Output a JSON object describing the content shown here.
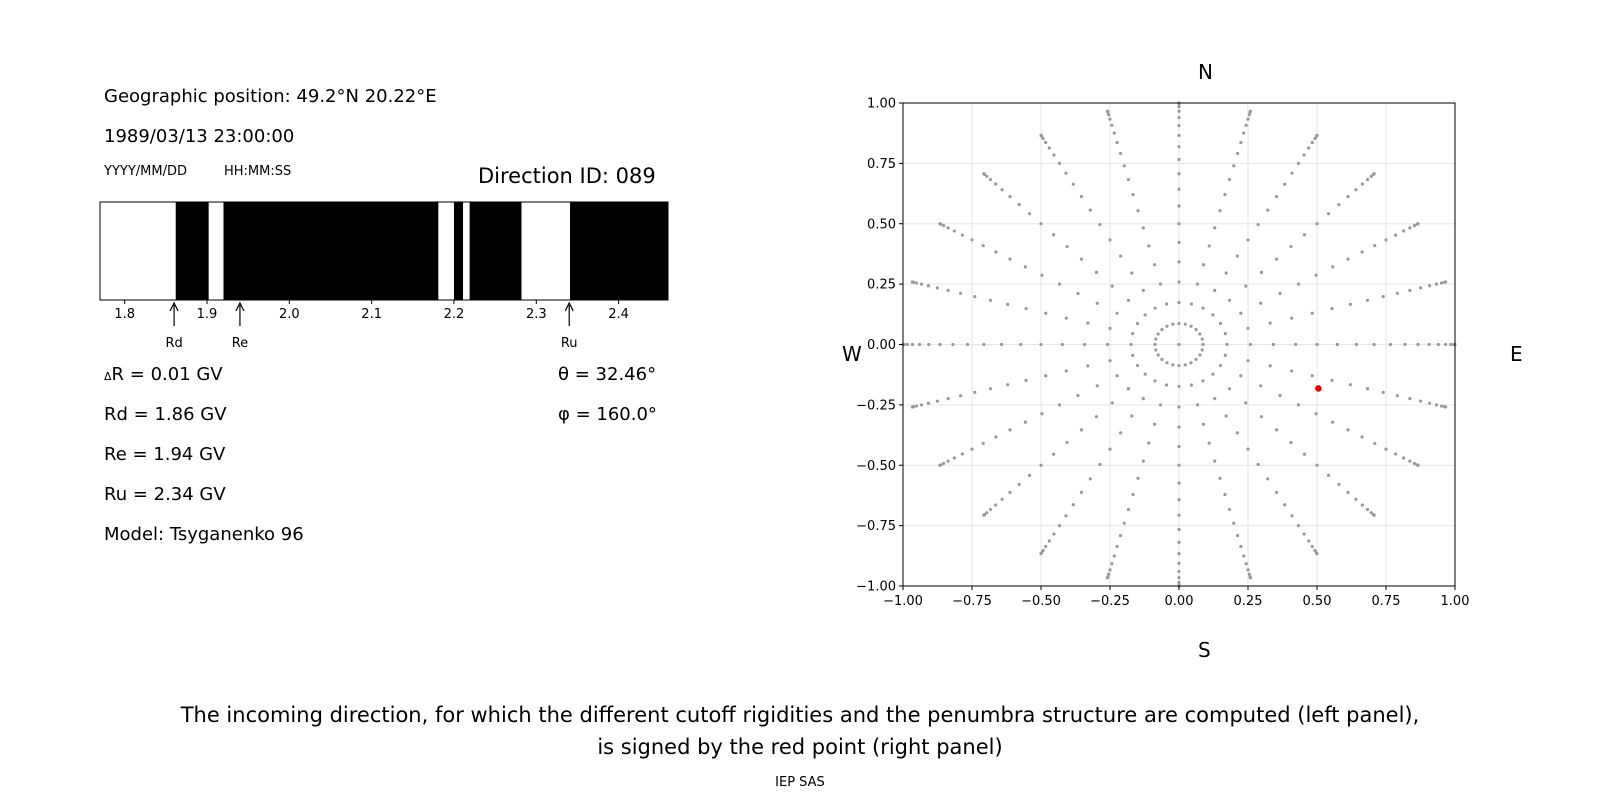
{
  "left_panel": {
    "geo_label": "Geographic position: 49.2°N 20.22°E",
    "datetime": "1989/03/13 23:00:00",
    "date_format": "YYYY/MM/DD",
    "time_format": "HH:MM:SS",
    "direction_id": "Direction ID: 089",
    "delta_r_symbol": "Δ",
    "delta_r": "R = 0.01 GV",
    "rd": "Rd = 1.86 GV",
    "re": "Re = 1.94 GV",
    "ru": "Ru = 2.34 GV",
    "model": "Model: Tsyganenko 96",
    "theta": "θ = 32.46°",
    "phi": "φ = 160.0°"
  },
  "compass": {
    "n": "N",
    "s": "S",
    "w": "W",
    "e": "E"
  },
  "caption": {
    "line1": "The incoming direction, for which the different cutoff rigidities and the penumbra structure are computed (left panel),",
    "line2": "is signed by the red point (right panel)"
  },
  "footer": "IEP SAS",
  "chart_data": [
    {
      "type": "bar",
      "xlim": [
        1.77,
        2.46
      ],
      "xticks": [
        1.8,
        1.9,
        2.0,
        2.1,
        2.2,
        2.3,
        2.4
      ],
      "tick_labels": [
        "1.8",
        "1.9",
        "2.0",
        "2.1",
        "2.2",
        "2.3",
        "2.4"
      ],
      "allowed_bands": [
        [
          1.77,
          1.862
        ],
        [
          1.902,
          1.92
        ],
        [
          2.181,
          2.2
        ],
        [
          2.211,
          2.219
        ],
        [
          2.282,
          2.341
        ]
      ],
      "markers": [
        {
          "label": "Rd",
          "x": 1.86
        },
        {
          "label": "Re",
          "x": 1.94
        },
        {
          "label": "Ru",
          "x": 2.34
        }
      ]
    },
    {
      "type": "scatter",
      "xlim": [
        -1.0,
        1.0
      ],
      "ylim": [
        -1.0,
        1.0
      ],
      "xticks": [
        -1.0,
        -0.75,
        -0.5,
        -0.25,
        0.0,
        0.25,
        0.5,
        0.75,
        1.0
      ],
      "xtick_labels": [
        "−1.00",
        "−0.75",
        "−0.50",
        "−0.25",
        "0.00",
        "0.25",
        "0.50",
        "0.75",
        "1.00"
      ],
      "yticks": [
        1.0,
        0.75,
        0.5,
        0.25,
        0.0,
        -0.25,
        -0.5,
        -0.75,
        -1.0
      ],
      "ytick_labels": [
        "1.00",
        "0.75",
        "0.50",
        "0.25",
        "0.00",
        "−0.25",
        "−0.50",
        "−0.75",
        "−1.00"
      ],
      "grid": true,
      "directions": {
        "zenith_angles_deg": [
          0,
          5,
          10,
          15,
          20,
          25,
          30,
          35,
          40,
          45,
          50,
          55,
          60,
          65,
          70,
          75,
          80,
          85,
          90
        ],
        "azimuth_step_deg": 15
      },
      "highlight": {
        "x": 0.505,
        "y": -0.182,
        "color": "#e8000b"
      },
      "point_color": "#999999"
    }
  ]
}
